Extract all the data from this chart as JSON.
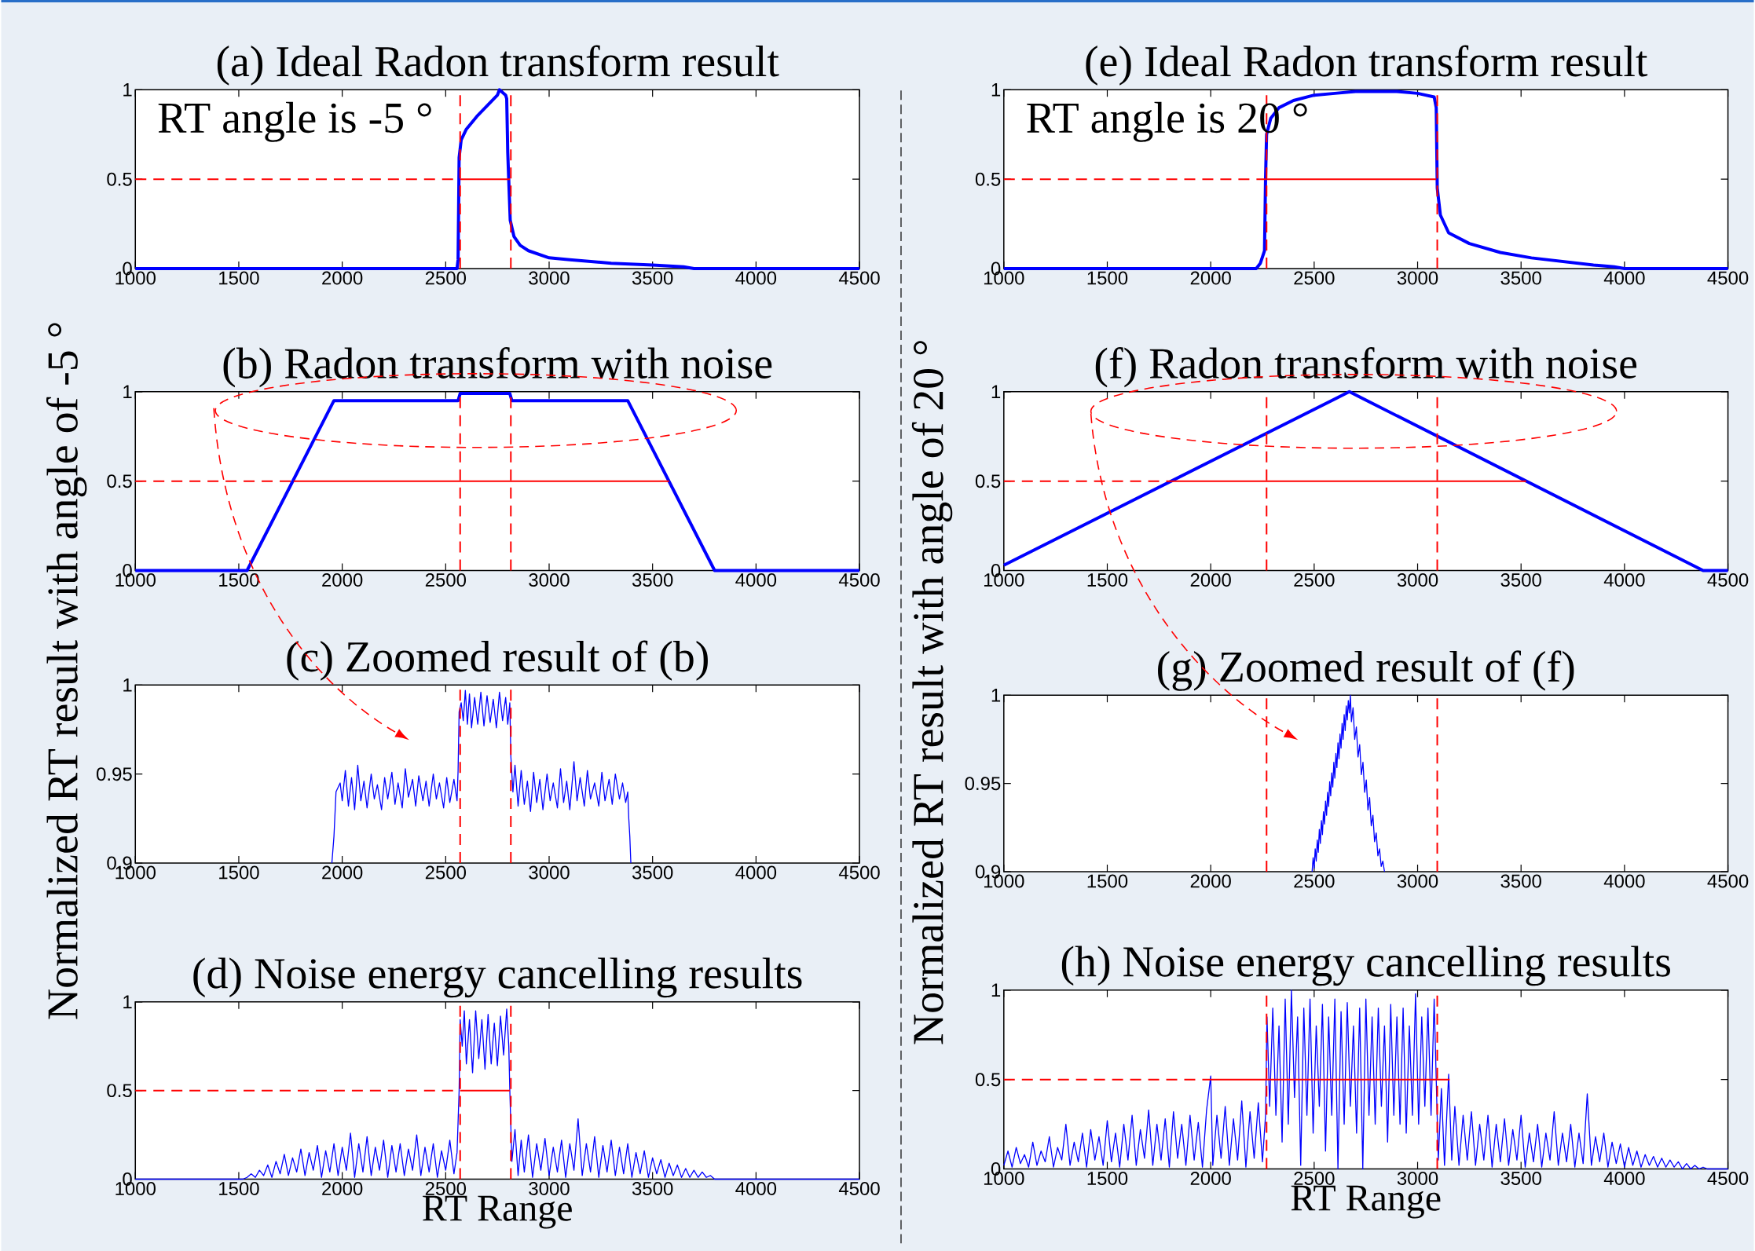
{
  "chart_data": [
    {
      "type": "line",
      "title": "(a) Ideal Radon transform result",
      "annotations": [
        "RT angle is -5 °"
      ],
      "xlim": [
        1000,
        4500
      ],
      "ylim": [
        0,
        1
      ],
      "xticks": [
        1000,
        1500,
        2000,
        2500,
        3000,
        3500,
        4000,
        4500
      ],
      "yticks": [
        0,
        0.5,
        1
      ],
      "series": [
        {
          "color": "#0000ff",
          "x": [
            1000,
            2555,
            2560,
            2565,
            2575,
            2600,
            2650,
            2700,
            2750,
            2760,
            2790,
            2795,
            2800,
            2812,
            2830,
            2860,
            2900,
            2950,
            3000,
            3100,
            3300,
            3500,
            3650,
            3700,
            4500
          ],
          "values": [
            0,
            0,
            0.05,
            0.62,
            0.72,
            0.78,
            0.85,
            0.91,
            0.97,
            1.0,
            0.97,
            0.95,
            0.65,
            0.27,
            0.18,
            0.13,
            0.1,
            0.08,
            0.06,
            0.05,
            0.03,
            0.02,
            0.01,
            0,
            0
          ]
        },
        {
          "color": "#ff0000",
          "line_style": "dashed",
          "x": [
            1000,
            2570
          ],
          "values": [
            0.5,
            0.5
          ]
        },
        {
          "color": "#ff0000",
          "line_style": "solid",
          "x": [
            2570,
            2810
          ],
          "values": [
            0.5,
            0.5
          ]
        }
      ],
      "ref_lines": [
        {
          "axis": "x",
          "value": 2570,
          "color": "#ff0000",
          "line_style": "dashed"
        },
        {
          "axis": "x",
          "value": 2815,
          "color": "#ff0000",
          "line_style": "dashed"
        }
      ]
    },
    {
      "type": "line",
      "title": "(b) Radon transform with noise",
      "ylabel": "Normalized RT result with angle of -5 °",
      "xlim": [
        1000,
        4500
      ],
      "ylim": [
        0,
        1
      ],
      "xticks": [
        1000,
        1500,
        2000,
        2500,
        3000,
        3500,
        4000,
        4500
      ],
      "yticks": [
        0,
        0.5,
        1
      ],
      "series": [
        {
          "color": "#0000ff",
          "x": [
            1000,
            1540,
            1960,
            2560,
            2570,
            2810,
            2820,
            3380,
            3800,
            4500
          ],
          "values": [
            0,
            0,
            0.95,
            0.95,
            0.99,
            0.99,
            0.95,
            0.95,
            0,
            0
          ]
        },
        {
          "color": "#ff0000",
          "line_style": "dashed",
          "x": [
            1000,
            1765
          ],
          "values": [
            0.5,
            0.5
          ]
        },
        {
          "color": "#ff0000",
          "line_style": "solid",
          "x": [
            1765,
            3580
          ],
          "values": [
            0.5,
            0.5
          ]
        }
      ],
      "ref_lines": [
        {
          "axis": "x",
          "value": 2570,
          "color": "#ff0000",
          "line_style": "dashed"
        },
        {
          "axis": "x",
          "value": 2815,
          "color": "#ff0000",
          "line_style": "dashed"
        }
      ]
    },
    {
      "type": "line",
      "title": "(c) Zoomed result of (b)",
      "xlim": [
        1000,
        4500
      ],
      "ylim": [
        0.9,
        1
      ],
      "xticks": [
        1000,
        1500,
        2000,
        2500,
        3000,
        3500,
        4000,
        4500
      ],
      "yticks": [
        0.9,
        0.95,
        1
      ],
      "series": [
        {
          "color": "#0000ff",
          "x": [
            1950,
            1960,
            1970,
            1990,
            2000,
            2015,
            2030,
            2045,
            2060,
            2075,
            2090,
            2105,
            2120,
            2140,
            2155,
            2170,
            2190,
            2205,
            2220,
            2240,
            2255,
            2270,
            2290,
            2305,
            2320,
            2340,
            2355,
            2370,
            2390,
            2405,
            2420,
            2440,
            2455,
            2470,
            2490,
            2505,
            2520,
            2540,
            2555,
            2560,
            2565,
            2575,
            2585,
            2595,
            2605,
            2615,
            2625,
            2640,
            2655,
            2670,
            2685,
            2700,
            2715,
            2730,
            2745,
            2760,
            2775,
            2790,
            2800,
            2810,
            2815,
            2825,
            2835,
            2850,
            2865,
            2880,
            2895,
            2910,
            2925,
            2940,
            2955,
            2970,
            2990,
            3005,
            3020,
            3040,
            3055,
            3070,
            3085,
            3100,
            3120,
            3135,
            3150,
            3170,
            3185,
            3200,
            3220,
            3240,
            3255,
            3270,
            3290,
            3305,
            3320,
            3340,
            3355,
            3370,
            3380,
            3385,
            3390,
            3395
          ],
          "values": [
            0.9,
            0.915,
            0.94,
            0.945,
            0.935,
            0.952,
            0.932,
            0.948,
            0.93,
            0.955,
            0.935,
            0.946,
            0.931,
            0.95,
            0.936,
            0.944,
            0.93,
            0.948,
            0.936,
            0.951,
            0.933,
            0.945,
            0.931,
            0.953,
            0.937,
            0.947,
            0.932,
            0.949,
            0.935,
            0.946,
            0.932,
            0.95,
            0.936,
            0.945,
            0.931,
            0.948,
            0.934,
            0.947,
            0.935,
            0.952,
            0.985,
            0.99,
            0.98,
            0.997,
            0.978,
            0.995,
            0.976,
            0.993,
            0.978,
            0.996,
            0.977,
            0.994,
            0.979,
            0.992,
            0.976,
            0.996,
            0.98,
            0.993,
            0.978,
            0.99,
            0.96,
            0.94,
            0.955,
            0.932,
            0.952,
            0.933,
            0.946,
            0.929,
            0.951,
            0.934,
            0.947,
            0.93,
            0.95,
            0.935,
            0.945,
            0.931,
            0.953,
            0.934,
            0.946,
            0.93,
            0.957,
            0.935,
            0.948,
            0.932,
            0.952,
            0.936,
            0.945,
            0.932,
            0.951,
            0.935,
            0.947,
            0.933,
            0.95,
            0.936,
            0.945,
            0.934,
            0.94,
            0.925,
            0.915,
            0.9
          ]
        }
      ],
      "ref_lines": [
        {
          "axis": "x",
          "value": 2570,
          "color": "#ff0000",
          "line_style": "dashed"
        },
        {
          "axis": "x",
          "value": 2815,
          "color": "#ff0000",
          "line_style": "dashed"
        }
      ]
    },
    {
      "type": "line",
      "title": "(d) Noise energy cancelling results",
      "xlabel": "RT Range",
      "xlim": [
        1000,
        4500
      ],
      "ylim": [
        0,
        1
      ],
      "xticks": [
        1000,
        1500,
        2000,
        2500,
        3000,
        3500,
        4000,
        4500
      ],
      "yticks": [
        0,
        0.5,
        1
      ],
      "series": [
        {
          "color": "#0000ff",
          "x": [
            1000,
            1520,
            1540,
            1560,
            1580,
            1600,
            1620,
            1640,
            1660,
            1680,
            1700,
            1720,
            1740,
            1760,
            1780,
            1800,
            1820,
            1840,
            1860,
            1880,
            1900,
            1920,
            1940,
            1960,
            1980,
            2000,
            2020,
            2040,
            2060,
            2080,
            2100,
            2120,
            2140,
            2160,
            2180,
            2200,
            2220,
            2240,
            2260,
            2280,
            2300,
            2320,
            2340,
            2360,
            2380,
            2400,
            2420,
            2440,
            2460,
            2480,
            2500,
            2520,
            2540,
            2555,
            2565,
            2570,
            2580,
            2590,
            2600,
            2615,
            2630,
            2645,
            2660,
            2675,
            2690,
            2705,
            2720,
            2735,
            2750,
            2765,
            2780,
            2795,
            2805,
            2810,
            2820,
            2835,
            2850,
            2865,
            2880,
            2900,
            2920,
            2940,
            2960,
            2980,
            3000,
            3020,
            3040,
            3060,
            3080,
            3100,
            3120,
            3140,
            3160,
            3180,
            3200,
            3220,
            3240,
            3260,
            3280,
            3300,
            3320,
            3340,
            3360,
            3380,
            3400,
            3420,
            3440,
            3460,
            3480,
            3500,
            3520,
            3540,
            3560,
            3580,
            3600,
            3620,
            3640,
            3660,
            3680,
            3700,
            3720,
            3740,
            3760,
            3780,
            3800,
            4500
          ],
          "values": [
            0,
            0,
            0.01,
            0.03,
            0.01,
            0.05,
            0.02,
            0.08,
            0.01,
            0.1,
            0.03,
            0.14,
            0.02,
            0.12,
            0.04,
            0.17,
            0.02,
            0.15,
            0.05,
            0.19,
            0.01,
            0.16,
            0.04,
            0.2,
            0.02,
            0.18,
            0.05,
            0.26,
            0.01,
            0.2,
            0.04,
            0.24,
            0.02,
            0.18,
            0.05,
            0.22,
            0.01,
            0.19,
            0.04,
            0.2,
            0.02,
            0.17,
            0.05,
            0.25,
            0.02,
            0.18,
            0.04,
            0.2,
            0.01,
            0.16,
            0.05,
            0.22,
            0.03,
            0.15,
            0.5,
            0.9,
            0.75,
            0.95,
            0.65,
            0.9,
            0.6,
            0.95,
            0.68,
            0.9,
            0.62,
            0.93,
            0.65,
            0.88,
            0.64,
            0.92,
            0.7,
            0.96,
            0.75,
            0.5,
            0.1,
            0.28,
            0.02,
            0.22,
            0.04,
            0.25,
            0.01,
            0.2,
            0.05,
            0.23,
            0.02,
            0.18,
            0.04,
            0.22,
            0.01,
            0.2,
            0.05,
            0.34,
            0.02,
            0.2,
            0.04,
            0.24,
            0.01,
            0.19,
            0.04,
            0.22,
            0.02,
            0.18,
            0.03,
            0.2,
            0.01,
            0.15,
            0.03,
            0.16,
            0.01,
            0.12,
            0.03,
            0.11,
            0.01,
            0.09,
            0.02,
            0.08,
            0.01,
            0.06,
            0.01,
            0.05,
            0.01,
            0.04,
            0.01,
            0.02,
            0,
            0
          ]
        },
        {
          "color": "#ff0000",
          "line_style": "dashed",
          "x": [
            1000,
            2570
          ],
          "values": [
            0.5,
            0.5
          ]
        },
        {
          "color": "#ff0000",
          "line_style": "solid",
          "x": [
            2570,
            2810
          ],
          "values": [
            0.5,
            0.5
          ]
        }
      ],
      "ref_lines": [
        {
          "axis": "x",
          "value": 2570,
          "color": "#ff0000",
          "line_style": "dashed"
        },
        {
          "axis": "x",
          "value": 2815,
          "color": "#ff0000",
          "line_style": "dashed"
        }
      ]
    },
    {
      "type": "line",
      "title": "(e) Ideal Radon transform result",
      "annotations": [
        "RT angle is 20 °"
      ],
      "xlim": [
        1000,
        4500
      ],
      "ylim": [
        0,
        1
      ],
      "xticks": [
        1000,
        1500,
        2000,
        2500,
        3000,
        3500,
        4000,
        4500
      ],
      "yticks": [
        0,
        0.5,
        1
      ],
      "series": [
        {
          "color": "#0000ff",
          "x": [
            1000,
            2220,
            2240,
            2260,
            2265,
            2270,
            2290,
            2330,
            2400,
            2500,
            2600,
            2700,
            2800,
            2900,
            3000,
            3080,
            3090,
            3095,
            3110,
            3150,
            3250,
            3400,
            3550,
            3700,
            3850,
            3950,
            4000,
            4500
          ],
          "values": [
            0,
            0,
            0.03,
            0.1,
            0.5,
            0.75,
            0.84,
            0.9,
            0.94,
            0.97,
            0.98,
            0.99,
            0.99,
            0.99,
            0.98,
            0.96,
            0.9,
            0.45,
            0.3,
            0.2,
            0.14,
            0.09,
            0.06,
            0.04,
            0.02,
            0.01,
            0,
            0
          ]
        },
        {
          "color": "#ff0000",
          "line_style": "dashed",
          "x": [
            1000,
            2270
          ],
          "values": [
            0.5,
            0.5
          ]
        },
        {
          "color": "#ff0000",
          "line_style": "solid",
          "x": [
            2270,
            3090
          ],
          "values": [
            0.5,
            0.5
          ]
        }
      ],
      "ref_lines": [
        {
          "axis": "x",
          "value": 2270,
          "color": "#ff0000",
          "line_style": "dashed"
        },
        {
          "axis": "x",
          "value": 3095,
          "color": "#ff0000",
          "line_style": "dashed"
        }
      ]
    },
    {
      "type": "line",
      "title": "(f) Radon transform with noise",
      "ylabel": "Normalized RT result with angle of 20 °",
      "xlim": [
        1000,
        4500
      ],
      "ylim": [
        0,
        1
      ],
      "xticks": [
        1000,
        1500,
        2000,
        2500,
        3000,
        3500,
        4000,
        4500
      ],
      "yticks": [
        0,
        0.5,
        1
      ],
      "series": [
        {
          "color": "#0000ff",
          "x": [
            1000,
            2670,
            4380,
            4500
          ],
          "values": [
            0.03,
            1.0,
            0,
            0
          ]
        },
        {
          "color": "#ff0000",
          "line_style": "dashed",
          "x": [
            1000,
            1810
          ],
          "values": [
            0.5,
            0.5
          ]
        },
        {
          "color": "#ff0000",
          "line_style": "solid",
          "x": [
            1810,
            3525
          ],
          "values": [
            0.5,
            0.5
          ]
        }
      ],
      "ref_lines": [
        {
          "axis": "x",
          "value": 2270,
          "color": "#ff0000",
          "line_style": "dashed"
        },
        {
          "axis": "x",
          "value": 3095,
          "color": "#ff0000",
          "line_style": "dashed"
        }
      ]
    },
    {
      "type": "line",
      "title": "(g) Zoomed result of (f)",
      "xlim": [
        1000,
        4500
      ],
      "ylim": [
        0.9,
        1
      ],
      "xticks": [
        1000,
        1500,
        2000,
        2500,
        3000,
        3500,
        4000,
        4500
      ],
      "yticks": [
        0.9,
        0.95,
        1
      ],
      "series": [
        {
          "color": "#0000ff",
          "x": [
            2490,
            2495,
            2500,
            2505,
            2510,
            2515,
            2520,
            2525,
            2530,
            2535,
            2540,
            2545,
            2550,
            2555,
            2560,
            2565,
            2570,
            2575,
            2580,
            2585,
            2590,
            2595,
            2600,
            2605,
            2610,
            2615,
            2620,
            2625,
            2630,
            2635,
            2640,
            2645,
            2650,
            2655,
            2660,
            2665,
            2670,
            2675,
            2680,
            2688,
            2696,
            2704,
            2712,
            2720,
            2728,
            2736,
            2744,
            2752,
            2760,
            2768,
            2776,
            2784,
            2792,
            2800,
            2808,
            2816,
            2824,
            2832,
            2840
          ],
          "values": [
            0.9,
            0.908,
            0.902,
            0.913,
            0.906,
            0.918,
            0.911,
            0.924,
            0.916,
            0.929,
            0.921,
            0.934,
            0.927,
            0.94,
            0.932,
            0.945,
            0.937,
            0.951,
            0.943,
            0.956,
            0.948,
            0.962,
            0.953,
            0.967,
            0.959,
            0.973,
            0.964,
            0.978,
            0.97,
            0.984,
            0.975,
            0.989,
            0.98,
            0.994,
            0.986,
            0.997,
            0.99,
            1.0,
            0.985,
            0.993,
            0.975,
            0.982,
            0.965,
            0.972,
            0.955,
            0.962,
            0.945,
            0.952,
            0.935,
            0.942,
            0.926,
            0.932,
            0.917,
            0.922,
            0.909,
            0.913,
            0.903,
            0.906,
            0.9
          ]
        }
      ],
      "ref_lines": [
        {
          "axis": "x",
          "value": 2270,
          "color": "#ff0000",
          "line_style": "dashed"
        },
        {
          "axis": "x",
          "value": 3095,
          "color": "#ff0000",
          "line_style": "dashed"
        }
      ]
    },
    {
      "type": "line",
      "title": "(h) Noise energy cancelling results",
      "xlabel": "RT Range",
      "xlim": [
        1000,
        4500
      ],
      "ylim": [
        0,
        1
      ],
      "xticks": [
        1000,
        1500,
        2000,
        2500,
        3000,
        3500,
        4000,
        4500
      ],
      "yticks": [
        0,
        0.5,
        1
      ],
      "series": [
        {
          "color": "#0000ff",
          "x": [
            1000,
            1020,
            1040,
            1060,
            1080,
            1100,
            1120,
            1140,
            1160,
            1180,
            1200,
            1220,
            1240,
            1260,
            1280,
            1300,
            1320,
            1340,
            1360,
            1380,
            1400,
            1420,
            1440,
            1460,
            1480,
            1500,
            1520,
            1540,
            1560,
            1580,
            1600,
            1620,
            1640,
            1660,
            1680,
            1700,
            1720,
            1740,
            1760,
            1780,
            1800,
            1820,
            1840,
            1860,
            1880,
            1900,
            1920,
            1940,
            1960,
            1980,
            2000,
            2010,
            2030,
            2050,
            2070,
            2090,
            2110,
            2130,
            2150,
            2170,
            2190,
            2210,
            2230,
            2250,
            2265,
            2272,
            2285,
            2300,
            2315,
            2330,
            2345,
            2360,
            2375,
            2390,
            2405,
            2420,
            2435,
            2450,
            2465,
            2480,
            2495,
            2510,
            2525,
            2540,
            2555,
            2570,
            2585,
            2600,
            2615,
            2630,
            2645,
            2660,
            2675,
            2690,
            2705,
            2720,
            2735,
            2750,
            2765,
            2780,
            2795,
            2810,
            2825,
            2840,
            2855,
            2870,
            2885,
            2900,
            2915,
            2930,
            2945,
            2960,
            2975,
            2990,
            3005,
            3020,
            3035,
            3050,
            3065,
            3080,
            3090,
            3100,
            3115,
            3130,
            3150,
            3165,
            3180,
            3200,
            3220,
            3240,
            3260,
            3280,
            3300,
            3320,
            3340,
            3360,
            3380,
            3400,
            3420,
            3440,
            3460,
            3480,
            3500,
            3520,
            3540,
            3560,
            3580,
            3600,
            3620,
            3640,
            3660,
            3680,
            3700,
            3720,
            3740,
            3760,
            3780,
            3800,
            3820,
            3840,
            3860,
            3880,
            3900,
            3920,
            3940,
            3960,
            3980,
            4000,
            4020,
            4040,
            4060,
            4080,
            4100,
            4120,
            4140,
            4160,
            4180,
            4200,
            4220,
            4240,
            4260,
            4280,
            4300,
            4320,
            4340,
            4360,
            4380,
            4400,
            4500
          ],
          "values": [
            0.02,
            0.1,
            0.01,
            0.12,
            0.03,
            0.08,
            0.01,
            0.15,
            0.02,
            0.1,
            0.04,
            0.18,
            0.01,
            0.12,
            0.05,
            0.25,
            0.02,
            0.15,
            0.04,
            0.2,
            0.01,
            0.22,
            0.05,
            0.18,
            0.02,
            0.27,
            0.04,
            0.2,
            0.01,
            0.25,
            0.05,
            0.3,
            0.02,
            0.22,
            0.06,
            0.33,
            0.02,
            0.25,
            0.05,
            0.28,
            0.01,
            0.32,
            0.06,
            0.25,
            0.02,
            0.3,
            0.05,
            0.26,
            0.01,
            0.33,
            0.52,
            0.02,
            0.3,
            0.06,
            0.35,
            0.02,
            0.28,
            0.05,
            0.38,
            0.01,
            0.32,
            0.06,
            0.37,
            0.04,
            0.3,
            0.85,
            0.35,
            0.9,
            0.3,
            0.8,
            0.15,
            0.95,
            0.25,
            1.0,
            0.4,
            0.85,
            0.02,
            0.9,
            0.3,
            0.95,
            0.2,
            0.8,
            0.35,
            0.92,
            0.1,
            0.85,
            0.3,
            0.95,
            0.0,
            0.88,
            0.25,
            0.93,
            0.35,
            0.8,
            0.2,
            0.9,
            0.0,
            0.95,
            0.3,
            0.85,
            0.25,
            0.9,
            0.35,
            0.8,
            0.15,
            0.92,
            0.3,
            0.85,
            0.25,
            0.9,
            0.2,
            0.8,
            0.3,
            0.98,
            0.25,
            0.85,
            0.35,
            0.9,
            0.3,
            0.95,
            0.5,
            0.05,
            0.45,
            0.02,
            0.53,
            0.05,
            0.35,
            0.02,
            0.3,
            0.05,
            0.32,
            0.02,
            0.25,
            0.05,
            0.3,
            0.01,
            0.25,
            0.04,
            0.28,
            0.02,
            0.22,
            0.05,
            0.3,
            0.01,
            0.2,
            0.04,
            0.25,
            0.01,
            0.2,
            0.05,
            0.32,
            0.02,
            0.2,
            0.04,
            0.25,
            0.01,
            0.2,
            0.03,
            0.42,
            0.02,
            0.18,
            0.04,
            0.2,
            0.01,
            0.15,
            0.03,
            0.14,
            0.01,
            0.12,
            0.02,
            0.1,
            0.01,
            0.08,
            0.02,
            0.07,
            0.01,
            0.06,
            0.01,
            0.05,
            0.01,
            0.04,
            0.0,
            0.03,
            0.0,
            0.02,
            0.0,
            0.01,
            0,
            0
          ]
        },
        {
          "color": "#ff0000",
          "line_style": "dashed",
          "x": [
            1000,
            2000
          ],
          "values": [
            0.5,
            0.5
          ]
        },
        {
          "color": "#ff0000",
          "line_style": "solid",
          "x": [
            2000,
            3155
          ],
          "values": [
            0.5,
            0.5
          ]
        }
      ],
      "ref_lines": [
        {
          "axis": "x",
          "value": 2270,
          "color": "#ff0000",
          "line_style": "dashed"
        },
        {
          "axis": "x",
          "value": 3095,
          "color": "#ff0000",
          "line_style": "dashed"
        }
      ]
    }
  ]
}
